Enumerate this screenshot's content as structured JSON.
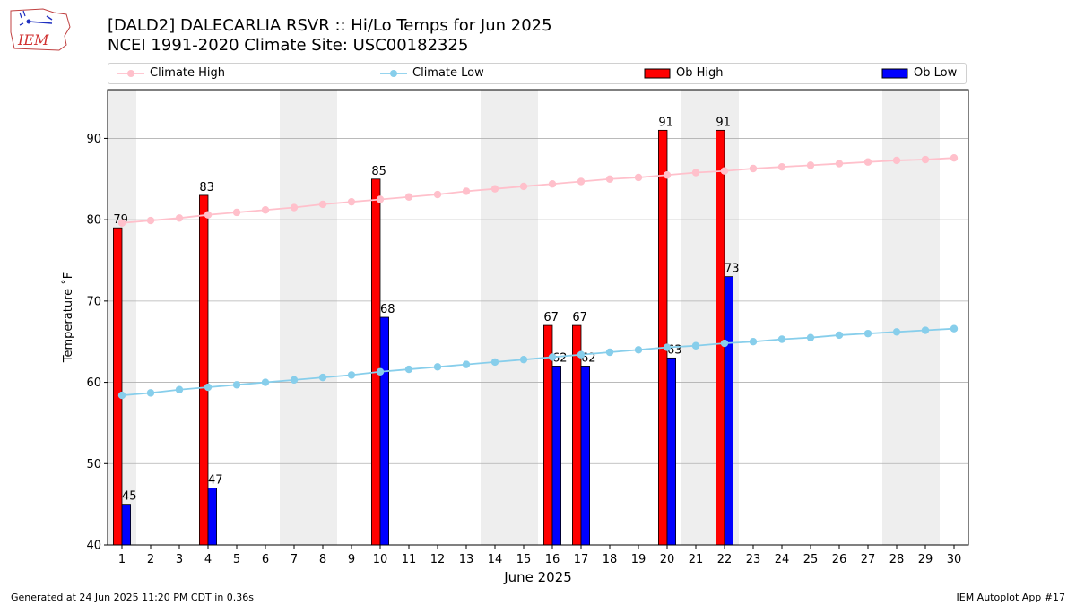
{
  "title_line1": "[DALD2] DALECARLIA RSVR :: Hi/Lo Temps for Jun 2025",
  "title_line2": "NCEI 1991-2020 Climate Site: USC00182325",
  "logo_text": "IEM",
  "legend": {
    "climate_high": "Climate High",
    "climate_low": "Climate Low",
    "ob_high": "Ob High",
    "ob_low": "Ob Low"
  },
  "footer_left": "Generated at 24 Jun 2025 11:20 PM CDT in 0.36s",
  "footer_right": "IEM Autoplot App #17",
  "colors": {
    "climate_high": "#ffc0cb",
    "climate_low": "#87ceeb",
    "ob_high": "#ff0000",
    "ob_low": "#0000ff",
    "weekend_shade": "#eeeeee",
    "grid": "#b0b0b0"
  },
  "chart_data": {
    "type": "bar",
    "xlabel": "June 2025",
    "ylabel": "Temperature ˚F",
    "ylim": [
      40,
      96
    ],
    "yticks": [
      40,
      50,
      60,
      70,
      80,
      90
    ],
    "xlim": [
      0.5,
      30.5
    ],
    "days": [
      1,
      2,
      3,
      4,
      5,
      6,
      7,
      8,
      9,
      10,
      11,
      12,
      13,
      14,
      15,
      16,
      17,
      18,
      19,
      20,
      21,
      22,
      23,
      24,
      25,
      26,
      27,
      28,
      29,
      30
    ],
    "shaded_days": [
      1,
      7,
      8,
      14,
      15,
      21,
      22,
      28,
      29
    ],
    "grid": "horizontal",
    "legend_position": "top",
    "ob_high": [
      {
        "day": 1,
        "value": 79
      },
      {
        "day": 4,
        "value": 83
      },
      {
        "day": 10,
        "value": 85
      },
      {
        "day": 16,
        "value": 67
      },
      {
        "day": 17,
        "value": 67
      },
      {
        "day": 20,
        "value": 91
      },
      {
        "day": 22,
        "value": 91
      }
    ],
    "ob_low": [
      {
        "day": 1,
        "value": 45
      },
      {
        "day": 4,
        "value": 47
      },
      {
        "day": 10,
        "value": 68
      },
      {
        "day": 16,
        "value": 62
      },
      {
        "day": 17,
        "value": 62
      },
      {
        "day": 20,
        "value": 63
      },
      {
        "day": 22,
        "value": 73
      }
    ],
    "climate_high": [
      79.6,
      79.9,
      80.2,
      80.6,
      80.9,
      81.2,
      81.5,
      81.9,
      82.2,
      82.5,
      82.8,
      83.1,
      83.5,
      83.8,
      84.1,
      84.4,
      84.7,
      85.0,
      85.2,
      85.5,
      85.8,
      86.0,
      86.3,
      86.5,
      86.7,
      86.9,
      87.1,
      87.3,
      87.4,
      87.6
    ],
    "climate_low": [
      58.4,
      58.7,
      59.1,
      59.4,
      59.7,
      60.0,
      60.3,
      60.6,
      60.9,
      61.3,
      61.6,
      61.9,
      62.2,
      62.5,
      62.8,
      63.1,
      63.4,
      63.7,
      64.0,
      64.3,
      64.5,
      64.8,
      65.0,
      65.3,
      65.5,
      65.8,
      66.0,
      66.2,
      66.4,
      66.6
    ]
  }
}
